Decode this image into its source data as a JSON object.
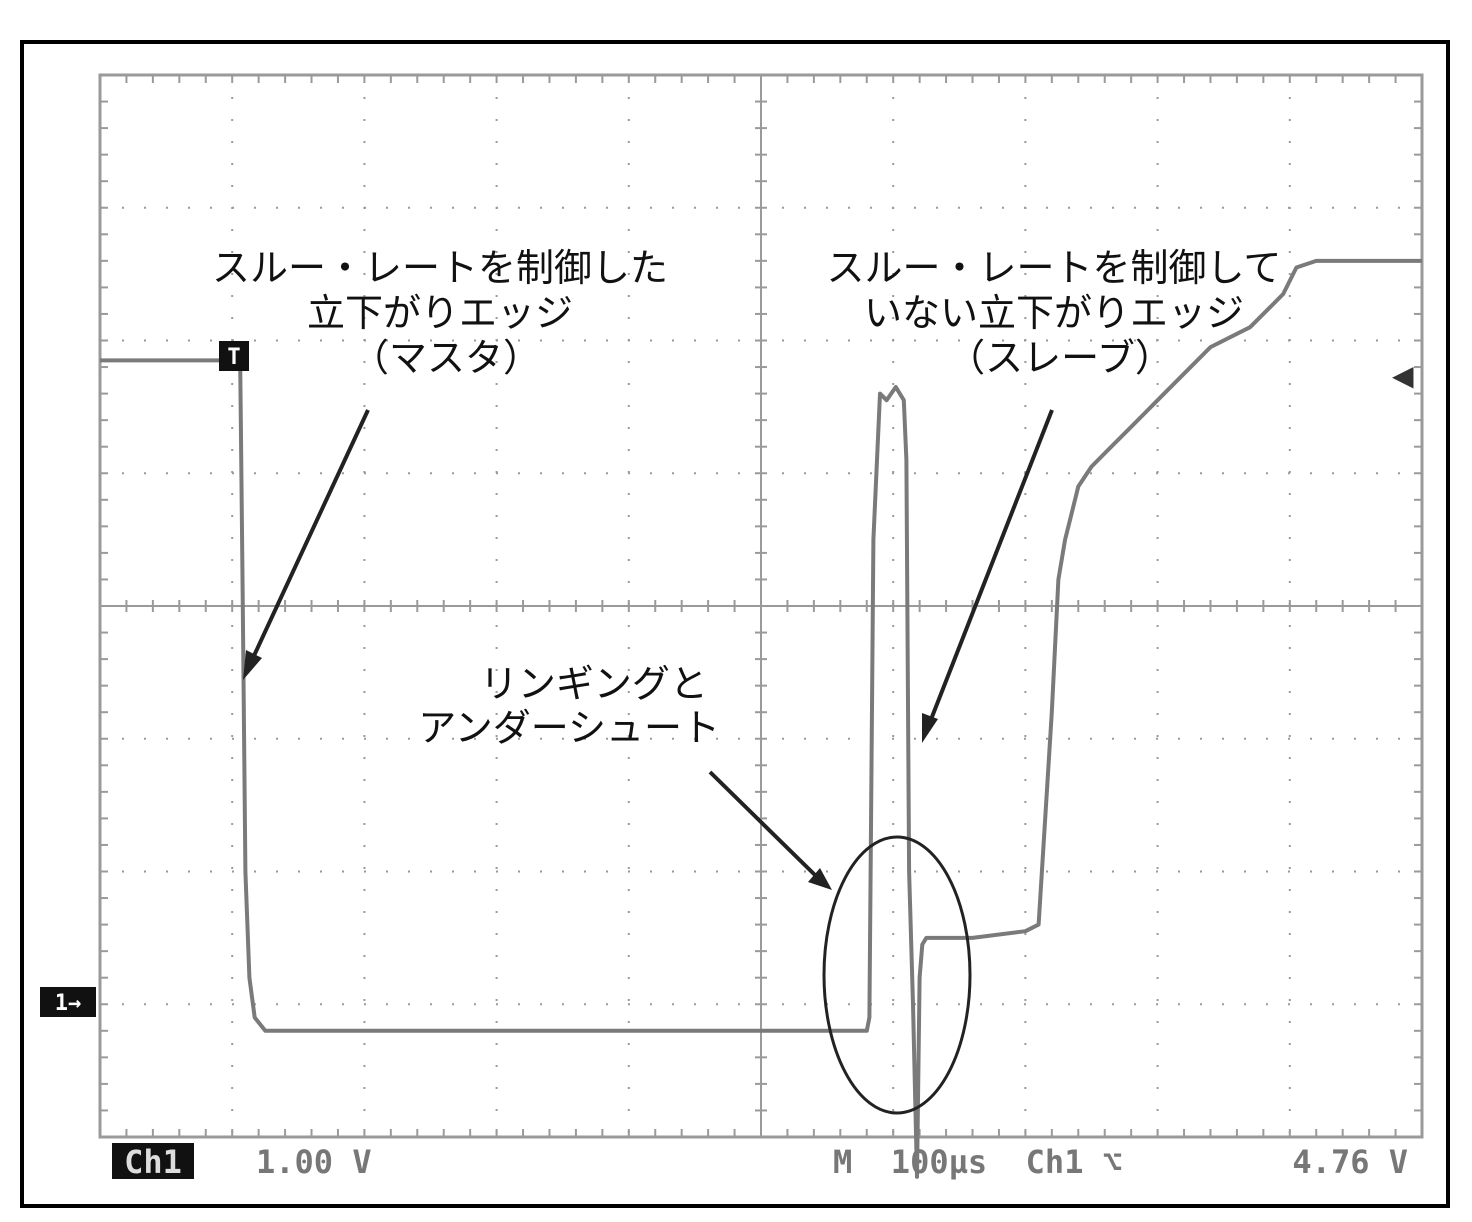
{
  "chart_data": {
    "type": "line",
    "title": "",
    "xlabel": "",
    "ylabel": "",
    "grid": true,
    "grid_divisions": {
      "x": 10,
      "y": 8
    },
    "xlim": [
      0,
      10
    ],
    "ylim": [
      -4,
      4
    ],
    "series": [
      {
        "x": [
          0,
          0.9,
          1.0,
          1.06,
          1.08,
          1.1,
          1.13,
          1.17,
          1.25,
          5.8,
          5.82,
          5.85,
          5.9,
          5.95,
          6.02,
          6.08,
          6.1,
          6.12,
          6.15,
          6.18,
          6.2,
          6.22,
          6.25,
          6.6,
          7.0,
          7.1,
          7.2,
          7.25,
          7.3,
          7.35,
          7.4,
          7.5,
          7.65,
          7.8,
          8.0,
          8.2,
          8.4,
          8.7,
          8.85,
          8.95,
          9.05,
          9.2,
          9.5,
          10
        ],
        "y": [
          1.85,
          1.85,
          1.9,
          1.9,
          0,
          -2,
          -2.8,
          -3.1,
          -3.2,
          -3.2,
          -3.1,
          0.5,
          1.6,
          1.55,
          1.65,
          1.55,
          1.1,
          -2,
          -3,
          -4.3,
          -2.8,
          -2.55,
          -2.5,
          -2.5,
          -2.45,
          -2.4,
          -0.8,
          0.2,
          0.5,
          0.7,
          0.9,
          1.05,
          1.2,
          1.35,
          1.55,
          1.75,
          1.95,
          2.1,
          2.25,
          2.35,
          2.55,
          2.6,
          2.6,
          2.6
        ]
      }
    ],
    "annotations": [
      {
        "id": "master",
        "lines": [
          "スルー・レートを制御した",
          "立下がりエッジ",
          "（マスタ）"
        ]
      },
      {
        "id": "slave",
        "lines": [
          "スルー・レートを制御して",
          "いない立下がりエッジ",
          "（スレーブ）"
        ]
      },
      {
        "id": "ringing",
        "lines": [
          "リンギングと",
          "アンダーシュート"
        ]
      }
    ]
  },
  "status": {
    "channel": "Ch1",
    "volts_per_div": "1.00 V",
    "timebase": "M  100µs  Ch1 ⌥",
    "trigger_level": "4.76 V"
  },
  "markers": {
    "trigger": "T",
    "ground": "1→",
    "trigger_level_arrow": "◀"
  }
}
